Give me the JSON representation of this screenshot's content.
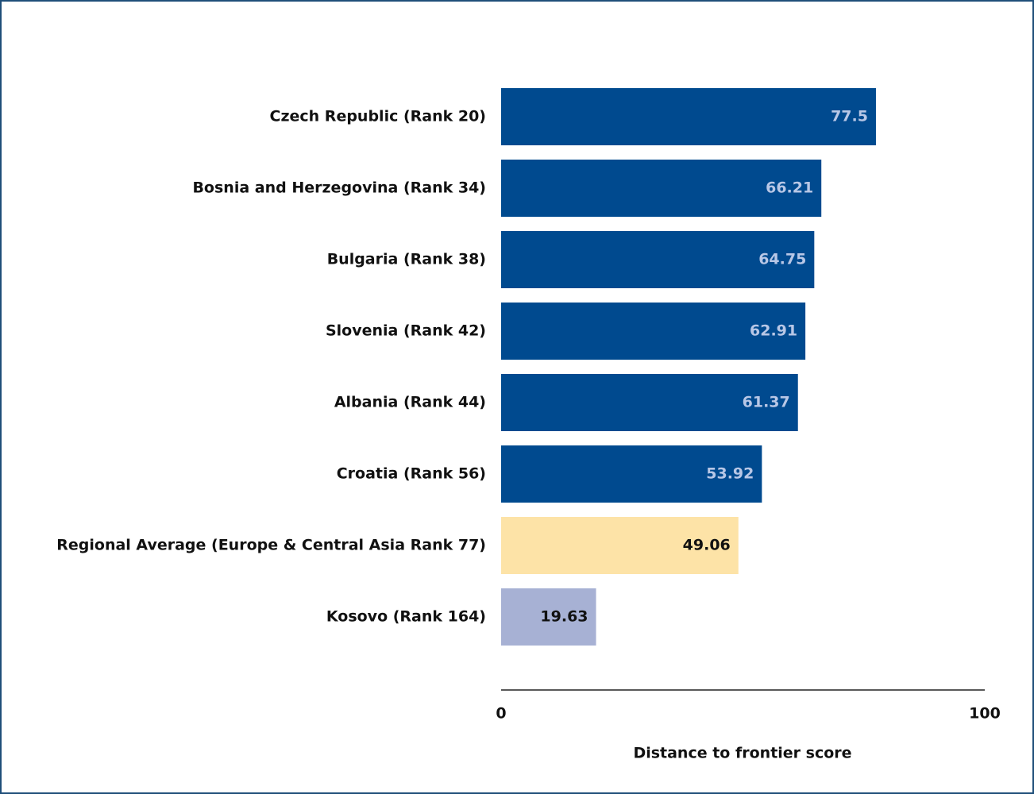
{
  "chart_data": {
    "type": "bar",
    "orientation": "horizontal",
    "categories": [
      "Czech Republic (Rank 20)",
      "Bosnia and Herzegovina (Rank 34)",
      "Bulgaria (Rank 38)",
      "Slovenia (Rank 42)",
      "Albania (Rank 44)",
      "Croatia (Rank 56)",
      "Regional Average (Europe & Central Asia Rank 77)",
      "Kosovo (Rank 164)"
    ],
    "values": [
      77.5,
      66.21,
      64.75,
      62.91,
      61.37,
      53.92,
      49.06,
      19.63
    ],
    "colors": [
      "#004a8f",
      "#004a8f",
      "#004a8f",
      "#004a8f",
      "#004a8f",
      "#004a8f",
      "#fde3a7",
      "#a7b1d4"
    ],
    "xlim": [
      0,
      100
    ],
    "xticks": [
      0,
      100
    ],
    "x_label": "Distance to frontier score",
    "grid": false
  }
}
